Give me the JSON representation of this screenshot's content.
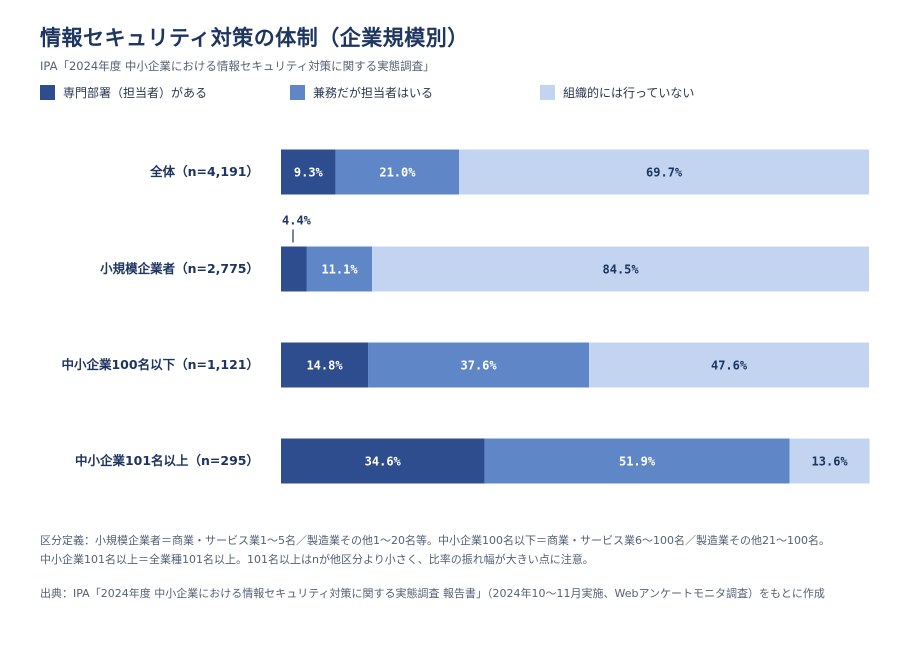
{
  "header": {
    "title": "情報セキュリティ対策の体制（企業規模別）",
    "subtitle": "IPA「2024年度 中小企業における情報セキュリティ対策に関する実態調査」"
  },
  "chart_data": {
    "type": "bar",
    "orientation": "horizontal",
    "stacked": true,
    "title": "情報セキュリティ対策の体制（企業規模別）",
    "unit": "%",
    "xlim": [
      0,
      100
    ],
    "legend_position": "top",
    "categories": [
      "全体（n=4,191）",
      "小規模企業者（n=2,775）",
      "中小企業100名以下（n=1,121）",
      "中小企業101名以上（n=295）"
    ],
    "series": [
      {
        "name": "専門部署（担当者）がある",
        "color": "#2e4d8e",
        "values": [
          9.3,
          4.4,
          14.8,
          34.6
        ],
        "labels": [
          "9.3%",
          "4.4%",
          "14.8%",
          "34.6%"
        ]
      },
      {
        "name": "兼務だが担当者はいる",
        "color": "#5f87c8",
        "values": [
          21.0,
          11.1,
          37.6,
          51.9
        ],
        "labels": [
          "21.0%",
          "11.1%",
          "37.6%",
          "51.9%"
        ]
      },
      {
        "name": "組織的には行っていない",
        "color": "#c2d4f0",
        "values": [
          69.7,
          84.5,
          47.6,
          13.6
        ],
        "labels": [
          "69.7%",
          "84.5%",
          "47.6%",
          "13.6%"
        ]
      }
    ]
  },
  "notes": {
    "line1": "区分定義：小規模企業者＝商業・サービス業1〜5名／製造業その他1〜20名等。中小企業100名以下＝商業・サービス業6〜100名／製造業その他21〜100名。",
    "line2": "中小企業101名以上＝全業種101名以上。101名以上はnが他区分より小さく、比率の振れ幅が大きい点に注意。"
  },
  "source": "出典：IPA「2024年度 中小企業における情報セキュリティ対策に関する実態調査 報告書」（2024年10〜11月実施、Webアンケートモニタ調査）をもとに作成"
}
